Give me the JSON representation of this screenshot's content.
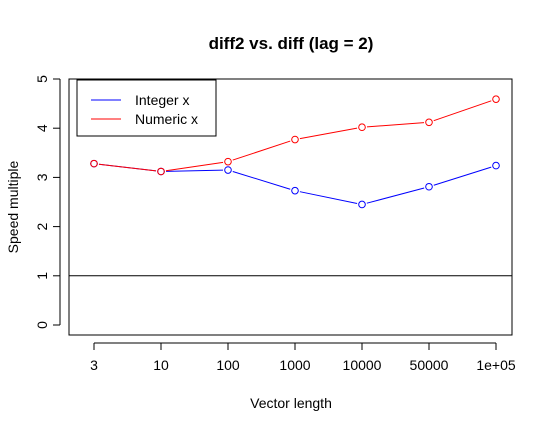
{
  "chart_data": {
    "type": "line",
    "title": "diff2 vs. diff (lag = 2)",
    "xlabel": "Vector length",
    "ylabel": "Speed multiple",
    "categories": [
      "3",
      "10",
      "100",
      "1000",
      "10000",
      "50000",
      "1e+05"
    ],
    "yticks": [
      "0",
      "1",
      "2",
      "3",
      "4",
      "5"
    ],
    "ylim": [
      0,
      5
    ],
    "reference_line": 1,
    "legend_position": "top-left",
    "series": [
      {
        "name": "Integer x",
        "color": "#0000ff",
        "values": [
          3.28,
          3.12,
          3.15,
          2.73,
          2.45,
          2.81,
          3.24
        ]
      },
      {
        "name": "Numeric x",
        "color": "#ff0000",
        "values": [
          3.28,
          3.12,
          3.32,
          3.77,
          4.02,
          4.12,
          4.59
        ]
      }
    ],
    "grid": false
  }
}
